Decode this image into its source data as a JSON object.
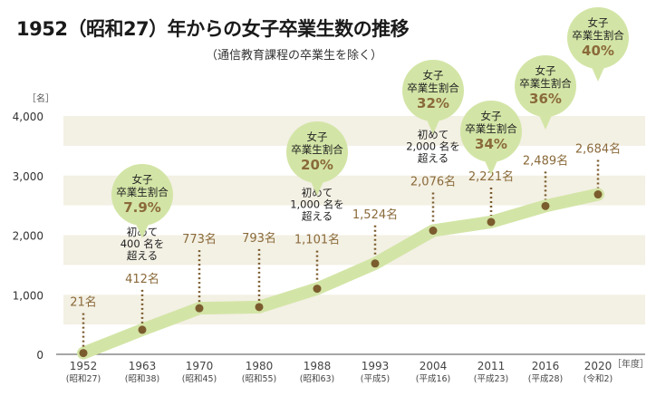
{
  "chart_data": {
    "type": "line",
    "title": "1952（昭和27）年からの女子卒業生数の推移",
    "subtitle": "（通信教育課程の卒業生を除く）",
    "ylabel": "［名］",
    "xlabel": "［年度］",
    "ylim": [
      0,
      4000
    ],
    "yticks": [
      "0",
      "1,000",
      "2,000",
      "3,000",
      "4,000"
    ],
    "grid": "alternating horizontal bands every 500",
    "categories": [
      "1952",
      "1963",
      "1970",
      "1980",
      "1988",
      "1993",
      "2004",
      "2011",
      "2016",
      "2020"
    ],
    "era_labels": [
      "(昭和27)",
      "(昭和38)",
      "(昭和45)",
      "(昭和55)",
      "(昭和63)",
      "(平成5)",
      "(平成16)",
      "(平成23)",
      "(平成28)",
      "(令和2)"
    ],
    "values": [
      21,
      412,
      773,
      793,
      1101,
      1524,
      2076,
      2221,
      2489,
      2684
    ],
    "value_labels": [
      "21名",
      "412名",
      "773名",
      "793名",
      "1,101名",
      "1,524名",
      "2,076名",
      "2,221名",
      "2,489名",
      "2,684名"
    ],
    "annotations": [
      {
        "index": 1,
        "lines": [
          "初めて",
          "400 名を",
          "超える"
        ]
      },
      {
        "index": 4,
        "lines": [
          "初めて",
          "1,000 名を",
          "超える"
        ]
      },
      {
        "index": 6,
        "lines": [
          "初めて",
          "2,000 名を",
          "超える"
        ]
      }
    ],
    "bubbles": [
      {
        "index": 1,
        "lines": [
          "女子",
          "卒業生割合"
        ],
        "pct": "7.9%"
      },
      {
        "index": 4,
        "lines": [
          "女子",
          "卒業生割合"
        ],
        "pct": "20%"
      },
      {
        "index": 6,
        "lines": [
          "女子",
          "卒業生割合"
        ],
        "pct": "32%"
      },
      {
        "index": 7,
        "lines": [
          "女子",
          "卒業生割合"
        ],
        "pct": "34%"
      },
      {
        "index": 8,
        "lines": [
          "女子",
          "卒業生割合"
        ],
        "pct": "36%"
      },
      {
        "index": 9,
        "lines": [
          "女子",
          "卒業生割合"
        ],
        "pct": "40%"
      }
    ],
    "colors": {
      "band": "#f3f0e4",
      "line": "#d3e5a6",
      "dot": "#7b5c2e",
      "value": "#8a6a3a",
      "bubble": "#d3e5a6",
      "pct": "#8a6a3a"
    }
  }
}
